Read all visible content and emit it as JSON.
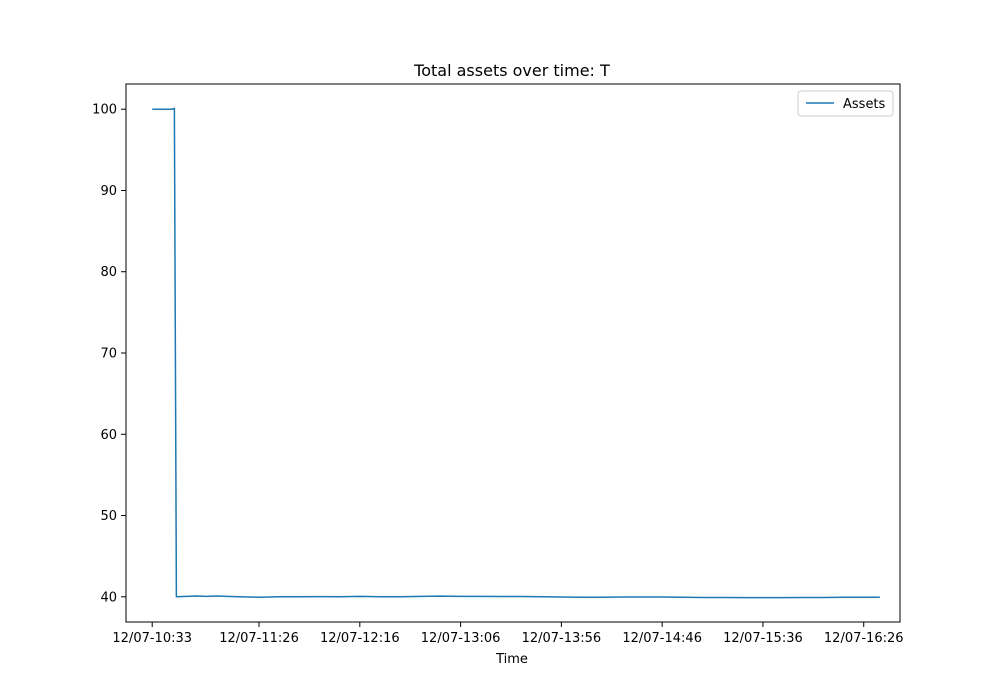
{
  "chart_data": {
    "type": "line",
    "title": "Total assets over time: T",
    "xlabel": "Time",
    "ylabel": "",
    "x_tick_labels": [
      "12/07-10:33",
      "12/07-11:26",
      "12/07-12:16",
      "12/07-13:06",
      "12/07-13:56",
      "12/07-14:46",
      "12/07-15:36",
      "12/07-16:26"
    ],
    "x_ticks": [
      "12/07-10:33",
      "12/07-11:26",
      "12/07-12:16",
      "12/07-13:06",
      "12/07-13:56",
      "12/07-14:46",
      "12/07-15:36",
      "12/07-16:26"
    ],
    "y_ticks": [
      40,
      50,
      60,
      70,
      80,
      90,
      100
    ],
    "y_tick_labels": [
      "40",
      "50",
      "60",
      "70",
      "80",
      "90",
      "100"
    ],
    "xlim": [
      "12/07-10:20",
      "12/07-16:44"
    ],
    "ylim": [
      36.9,
      103.1
    ],
    "grid": false,
    "legend": {
      "position": "top-right",
      "entries": [
        "Assets"
      ]
    },
    "series": [
      {
        "name": "Assets",
        "color": "#1f77b4",
        "x": [
          "12/07-10:33",
          "12/07-10:38",
          "12/07-10:43",
          "12/07-10:44",
          "12/07-10:45",
          "12/07-10:45",
          "12/07-10:50",
          "12/07-10:55",
          "12/07-11:00",
          "12/07-11:05",
          "12/07-11:10",
          "12/07-11:16",
          "12/07-11:21",
          "12/07-11:26",
          "12/07-11:36",
          "12/07-11:46",
          "12/07-11:56",
          "12/07-12:06",
          "12/07-12:16",
          "12/07-12:26",
          "12/07-12:36",
          "12/07-12:46",
          "12/07-12:56",
          "12/07-13:06",
          "12/07-13:16",
          "12/07-13:26",
          "12/07-13:36",
          "12/07-13:46",
          "12/07-13:56",
          "12/07-14:06",
          "12/07-14:16",
          "12/07-14:26",
          "12/07-14:36",
          "12/07-14:46",
          "12/07-14:56",
          "12/07-15:06",
          "12/07-15:16",
          "12/07-15:26",
          "12/07-15:36",
          "12/07-15:46",
          "12/07-15:56",
          "12/07-16:06",
          "12/07-16:16",
          "12/07-16:26",
          "12/07-16:34"
        ],
        "y": [
          100.0,
          100.0,
          100.0,
          100.1,
          40.0,
          40.0,
          40.05,
          40.1,
          40.05,
          40.1,
          40.05,
          40.0,
          39.97,
          39.95,
          40.0,
          40.0,
          40.02,
          40.0,
          40.05,
          40.0,
          40.0,
          40.05,
          40.08,
          40.05,
          40.05,
          40.03,
          40.03,
          40.0,
          39.97,
          39.95,
          39.95,
          39.97,
          39.97,
          39.97,
          39.95,
          39.92,
          39.92,
          39.9,
          39.9,
          39.9,
          39.92,
          39.92,
          39.95,
          39.95,
          39.95
        ]
      }
    ]
  }
}
